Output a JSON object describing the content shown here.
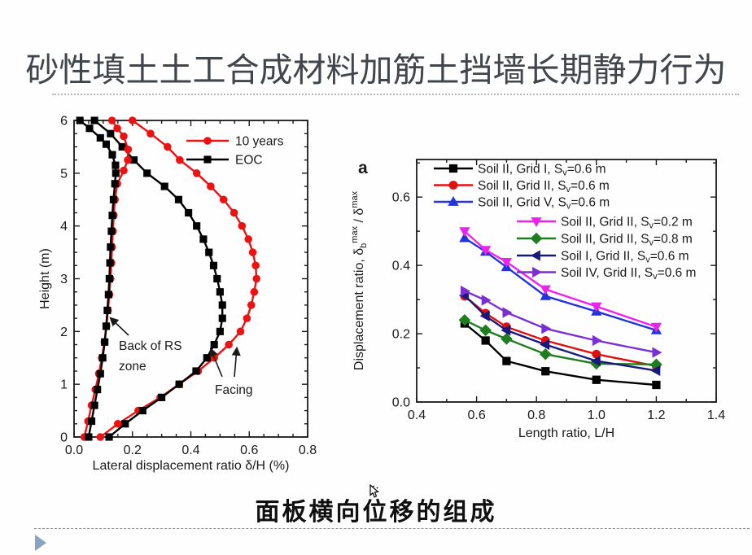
{
  "title": "砂性填土土工合成材料加筋土挡墙长期静力行为",
  "caption": "面板横向位移的组成",
  "colors": {
    "background": "#fefefe",
    "title_text": "#41454c",
    "title_divider": "#b5b5b5",
    "caption_text": "#101010",
    "footer_divider": "#8c8c8c",
    "footer_triangle": "#8ba3c2",
    "axis_text": "#1a1a1a"
  },
  "chart_data": [
    {
      "id": "lateral-displacement-profile",
      "type": "line",
      "xlabel": "Lateral displacement ratio δ/H (%)",
      "ylabel": "Height (m)",
      "xlim": [
        0.0,
        0.8
      ],
      "ylim": [
        0,
        6
      ],
      "xticks": [
        "0.0",
        "0.2",
        "0.4",
        "0.6",
        "0.8"
      ],
      "yticks": [
        "0",
        "1",
        "2",
        "3",
        "4",
        "5",
        "6"
      ],
      "grid": false,
      "legend_position": "top-right-inside",
      "series": [
        {
          "name": "10 years",
          "group": "Facing",
          "color": "#ee1111",
          "marker": "circle",
          "in_legend": true,
          "points": [
            [
              0.09,
              0.0
            ],
            [
              0.15,
              0.25
            ],
            [
              0.22,
              0.5
            ],
            [
              0.295,
              0.75
            ],
            [
              0.36,
              1.0
            ],
            [
              0.425,
              1.25
            ],
            [
              0.48,
              1.5
            ],
            [
              0.53,
              1.75
            ],
            [
              0.57,
              2.0
            ],
            [
              0.592,
              2.25
            ],
            [
              0.607,
              2.5
            ],
            [
              0.617,
              2.75
            ],
            [
              0.625,
              3.0
            ],
            [
              0.622,
              3.25
            ],
            [
              0.612,
              3.5
            ],
            [
              0.597,
              3.75
            ],
            [
              0.575,
              4.0
            ],
            [
              0.548,
              4.25
            ],
            [
              0.512,
              4.5
            ],
            [
              0.468,
              4.75
            ],
            [
              0.42,
              5.0
            ],
            [
              0.362,
              5.25
            ],
            [
              0.32,
              5.5
            ],
            [
              0.262,
              5.75
            ],
            [
              0.2,
              6.0
            ]
          ]
        },
        {
          "name": "EOC",
          "group": "Facing",
          "color": "#000000",
          "marker": "square",
          "in_legend": true,
          "points": [
            [
              0.12,
              0.0
            ],
            [
              0.175,
              0.25
            ],
            [
              0.235,
              0.5
            ],
            [
              0.3,
              0.75
            ],
            [
              0.36,
              1.0
            ],
            [
              0.418,
              1.25
            ],
            [
              0.455,
              1.5
            ],
            [
              0.48,
              1.75
            ],
            [
              0.5,
              2.0
            ],
            [
              0.508,
              2.25
            ],
            [
              0.508,
              2.5
            ],
            [
              0.5,
              2.75
            ],
            [
              0.49,
              3.0
            ],
            [
              0.478,
              3.25
            ],
            [
              0.462,
              3.5
            ],
            [
              0.443,
              3.75
            ],
            [
              0.42,
              4.0
            ],
            [
              0.392,
              4.25
            ],
            [
              0.358,
              4.5
            ],
            [
              0.31,
              4.75
            ],
            [
              0.25,
              5.0
            ],
            [
              0.205,
              5.25
            ],
            [
              0.165,
              5.5
            ],
            [
              0.125,
              5.75
            ],
            [
              0.07,
              6.0
            ]
          ]
        },
        {
          "name": "10 years",
          "group": "Back of RS zone",
          "color": "#ee1111",
          "marker": "circle",
          "in_legend": false,
          "points": [
            [
              0.035,
              0.0
            ],
            [
              0.048,
              0.3
            ],
            [
              0.06,
              0.6
            ],
            [
              0.073,
              0.9
            ],
            [
              0.085,
              1.2
            ],
            [
              0.095,
              1.5
            ],
            [
              0.104,
              1.8
            ],
            [
              0.111,
              2.1
            ],
            [
              0.116,
              2.4
            ],
            [
              0.121,
              2.7
            ],
            [
              0.125,
              3.0
            ],
            [
              0.128,
              3.3
            ],
            [
              0.13,
              3.6
            ],
            [
              0.133,
              3.9
            ],
            [
              0.136,
              4.2
            ],
            [
              0.14,
              4.5
            ],
            [
              0.148,
              4.8
            ],
            [
              0.17,
              5.05
            ],
            [
              0.184,
              5.25
            ],
            [
              0.185,
              5.45
            ],
            [
              0.17,
              5.7
            ],
            [
              0.148,
              5.85
            ],
            [
              0.13,
              6.0
            ]
          ]
        },
        {
          "name": "EOC",
          "group": "Back of RS zone",
          "color": "#000000",
          "marker": "square",
          "in_legend": false,
          "points": [
            [
              0.05,
              0.0
            ],
            [
              0.06,
              0.3
            ],
            [
              0.07,
              0.6
            ],
            [
              0.08,
              0.9
            ],
            [
              0.09,
              1.2
            ],
            [
              0.098,
              1.5
            ],
            [
              0.105,
              1.8
            ],
            [
              0.11,
              2.1
            ],
            [
              0.114,
              2.4
            ],
            [
              0.118,
              2.7
            ],
            [
              0.121,
              3.0
            ],
            [
              0.123,
              3.3
            ],
            [
              0.125,
              3.6
            ],
            [
              0.128,
              3.9
            ],
            [
              0.131,
              4.2
            ],
            [
              0.135,
              4.5
            ],
            [
              0.14,
              4.8
            ],
            [
              0.143,
              5.0
            ],
            [
              0.142,
              5.15
            ],
            [
              0.131,
              5.35
            ],
            [
              0.11,
              5.55
            ],
            [
              0.09,
              5.67
            ],
            [
              0.053,
              5.85
            ],
            [
              0.02,
              6.0
            ]
          ]
        }
      ],
      "annotations": [
        "Back of RS",
        "zone",
        "Facing"
      ]
    },
    {
      "id": "displacement-ratio-vs-length-ratio",
      "type": "line",
      "panel_label": "a",
      "xlabel": "Length ratio, L/H",
      "ylabel_segments": [
        {
          "t": "Displacement ratio, δ"
        },
        {
          "t": "b",
          "s": "sub"
        },
        {
          "t": "max",
          "s": "sup"
        },
        {
          "t": " / δ"
        },
        {
          "t": "max",
          "s": "sup"
        }
      ],
      "xlim": [
        0.4,
        1.4
      ],
      "ylim": [
        0.0,
        0.71
      ],
      "xticks": [
        "0.4",
        "0.6",
        "0.8",
        "1.0",
        "1.2",
        "1.4"
      ],
      "yticks": [
        "0.0",
        "0.2",
        "0.4",
        "0.6"
      ],
      "grid": false,
      "legend_position": "top-inside",
      "x": [
        0.56,
        0.63,
        0.7,
        0.83,
        1.0,
        1.2
      ],
      "series": [
        {
          "name": "Soil II, Grid I, Sv=0.6 m",
          "color": "#000000",
          "marker": "square",
          "in_legend": true,
          "values": [
            0.23,
            0.18,
            0.12,
            0.09,
            0.065,
            0.05
          ]
        },
        {
          "name": "Soil II, Grid II, Sv=0.6 m",
          "color": "#e01010",
          "marker": "circle",
          "in_legend": true,
          "values": [
            0.31,
            0.26,
            0.22,
            0.18,
            0.14,
            0.105
          ]
        },
        {
          "name": "Soil II, Grid V, Sv=0.6 m",
          "color": "#2233dd",
          "marker": "triangle-up",
          "in_legend": true,
          "values": [
            0.48,
            0.44,
            0.395,
            0.31,
            0.265,
            0.21
          ]
        },
        {
          "name": "Soil II, Grid II, Sv=0.2 m",
          "color": "#ee22ee",
          "marker": "triangle-down",
          "in_legend": true,
          "values": [
            0.5,
            0.445,
            0.41,
            0.33,
            0.28,
            0.22
          ]
        },
        {
          "name": "Soil II, Grid II, Sv=0.8 m",
          "color": "#1e7d1e",
          "marker": "diamond",
          "in_legend": true,
          "values": [
            0.24,
            0.21,
            0.185,
            0.14,
            0.112,
            0.11
          ]
        },
        {
          "name": "Soil I, Grid II, Sv=0.6 m",
          "color": "#18187d",
          "marker": "triangle-left",
          "in_legend": true,
          "values": [
            0.312,
            0.252,
            0.21,
            0.168,
            0.12,
            0.092
          ]
        },
        {
          "name": "Soil IV, Grid II, Sv=0.6 m",
          "color": "#7a2fd0",
          "marker": "triangle-right",
          "in_legend": true,
          "values": [
            0.325,
            0.298,
            0.262,
            0.215,
            0.18,
            0.145
          ]
        }
      ]
    }
  ]
}
